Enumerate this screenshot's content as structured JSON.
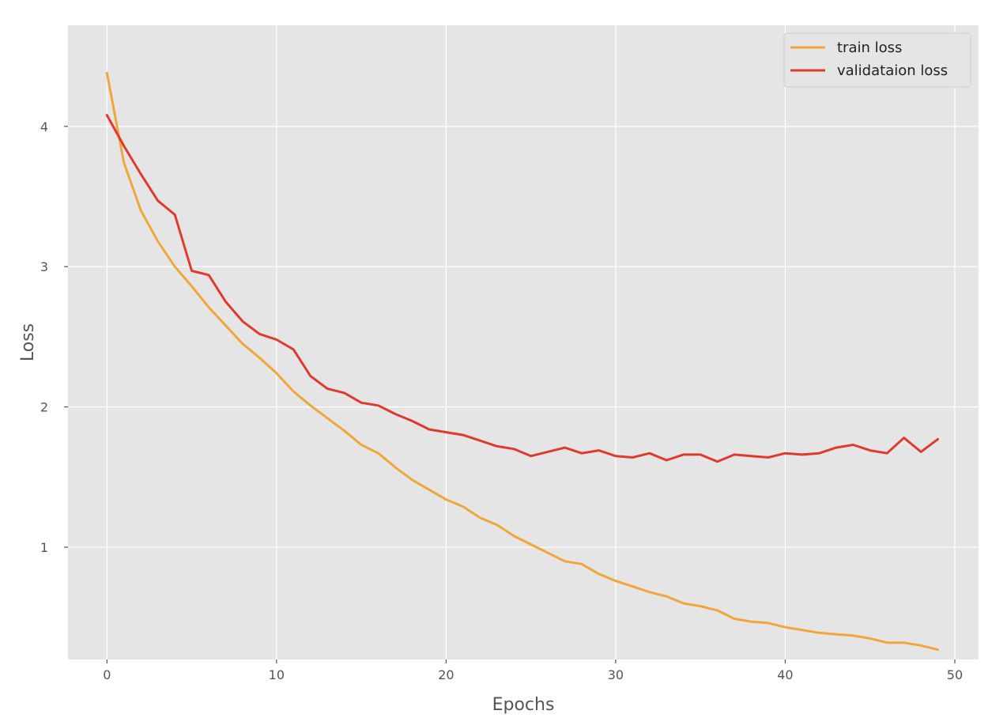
{
  "chart_data": {
    "type": "line",
    "title": "",
    "xlabel": "Epochs",
    "ylabel": "Loss",
    "xlim": [
      -2.3,
      51.4
    ],
    "ylim": [
      0.2,
      4.72
    ],
    "xticks": [
      0,
      10,
      20,
      30,
      40,
      50
    ],
    "yticks": [
      1,
      2,
      3,
      4
    ],
    "grid": true,
    "legend_position": "top-right",
    "x": [
      0,
      1,
      2,
      3,
      4,
      5,
      6,
      7,
      8,
      9,
      10,
      11,
      12,
      13,
      14,
      15,
      16,
      17,
      18,
      19,
      20,
      21,
      22,
      23,
      24,
      25,
      26,
      27,
      28,
      29,
      30,
      31,
      32,
      33,
      34,
      35,
      36,
      37,
      38,
      39,
      40,
      41,
      42,
      43,
      44,
      45,
      46,
      47,
      48,
      49
    ],
    "series": [
      {
        "name": "train loss",
        "color": "#f0a73a",
        "values": [
          4.38,
          3.74,
          3.4,
          3.18,
          3.0,
          2.86,
          2.71,
          2.58,
          2.45,
          2.35,
          2.24,
          2.11,
          2.01,
          1.92,
          1.83,
          1.73,
          1.67,
          1.57,
          1.48,
          1.41,
          1.34,
          1.29,
          1.21,
          1.16,
          1.08,
          1.02,
          0.96,
          0.9,
          0.88,
          0.81,
          0.76,
          0.72,
          0.68,
          0.65,
          0.6,
          0.58,
          0.55,
          0.49,
          0.47,
          0.46,
          0.43,
          0.41,
          0.39,
          0.38,
          0.37,
          0.35,
          0.32,
          0.32,
          0.3,
          0.27
        ]
      },
      {
        "name": "validataion loss",
        "color": "#e03a2e",
        "values": [
          4.08,
          3.86,
          3.66,
          3.47,
          3.37,
          2.97,
          2.94,
          2.75,
          2.61,
          2.52,
          2.48,
          2.41,
          2.22,
          2.13,
          2.1,
          2.03,
          2.01,
          1.95,
          1.9,
          1.84,
          1.82,
          1.8,
          1.76,
          1.72,
          1.7,
          1.65,
          1.68,
          1.71,
          1.67,
          1.69,
          1.65,
          1.64,
          1.67,
          1.62,
          1.66,
          1.66,
          1.61,
          1.66,
          1.65,
          1.64,
          1.67,
          1.66,
          1.67,
          1.71,
          1.73,
          1.69,
          1.67,
          1.78,
          1.68,
          1.77
        ]
      }
    ]
  }
}
